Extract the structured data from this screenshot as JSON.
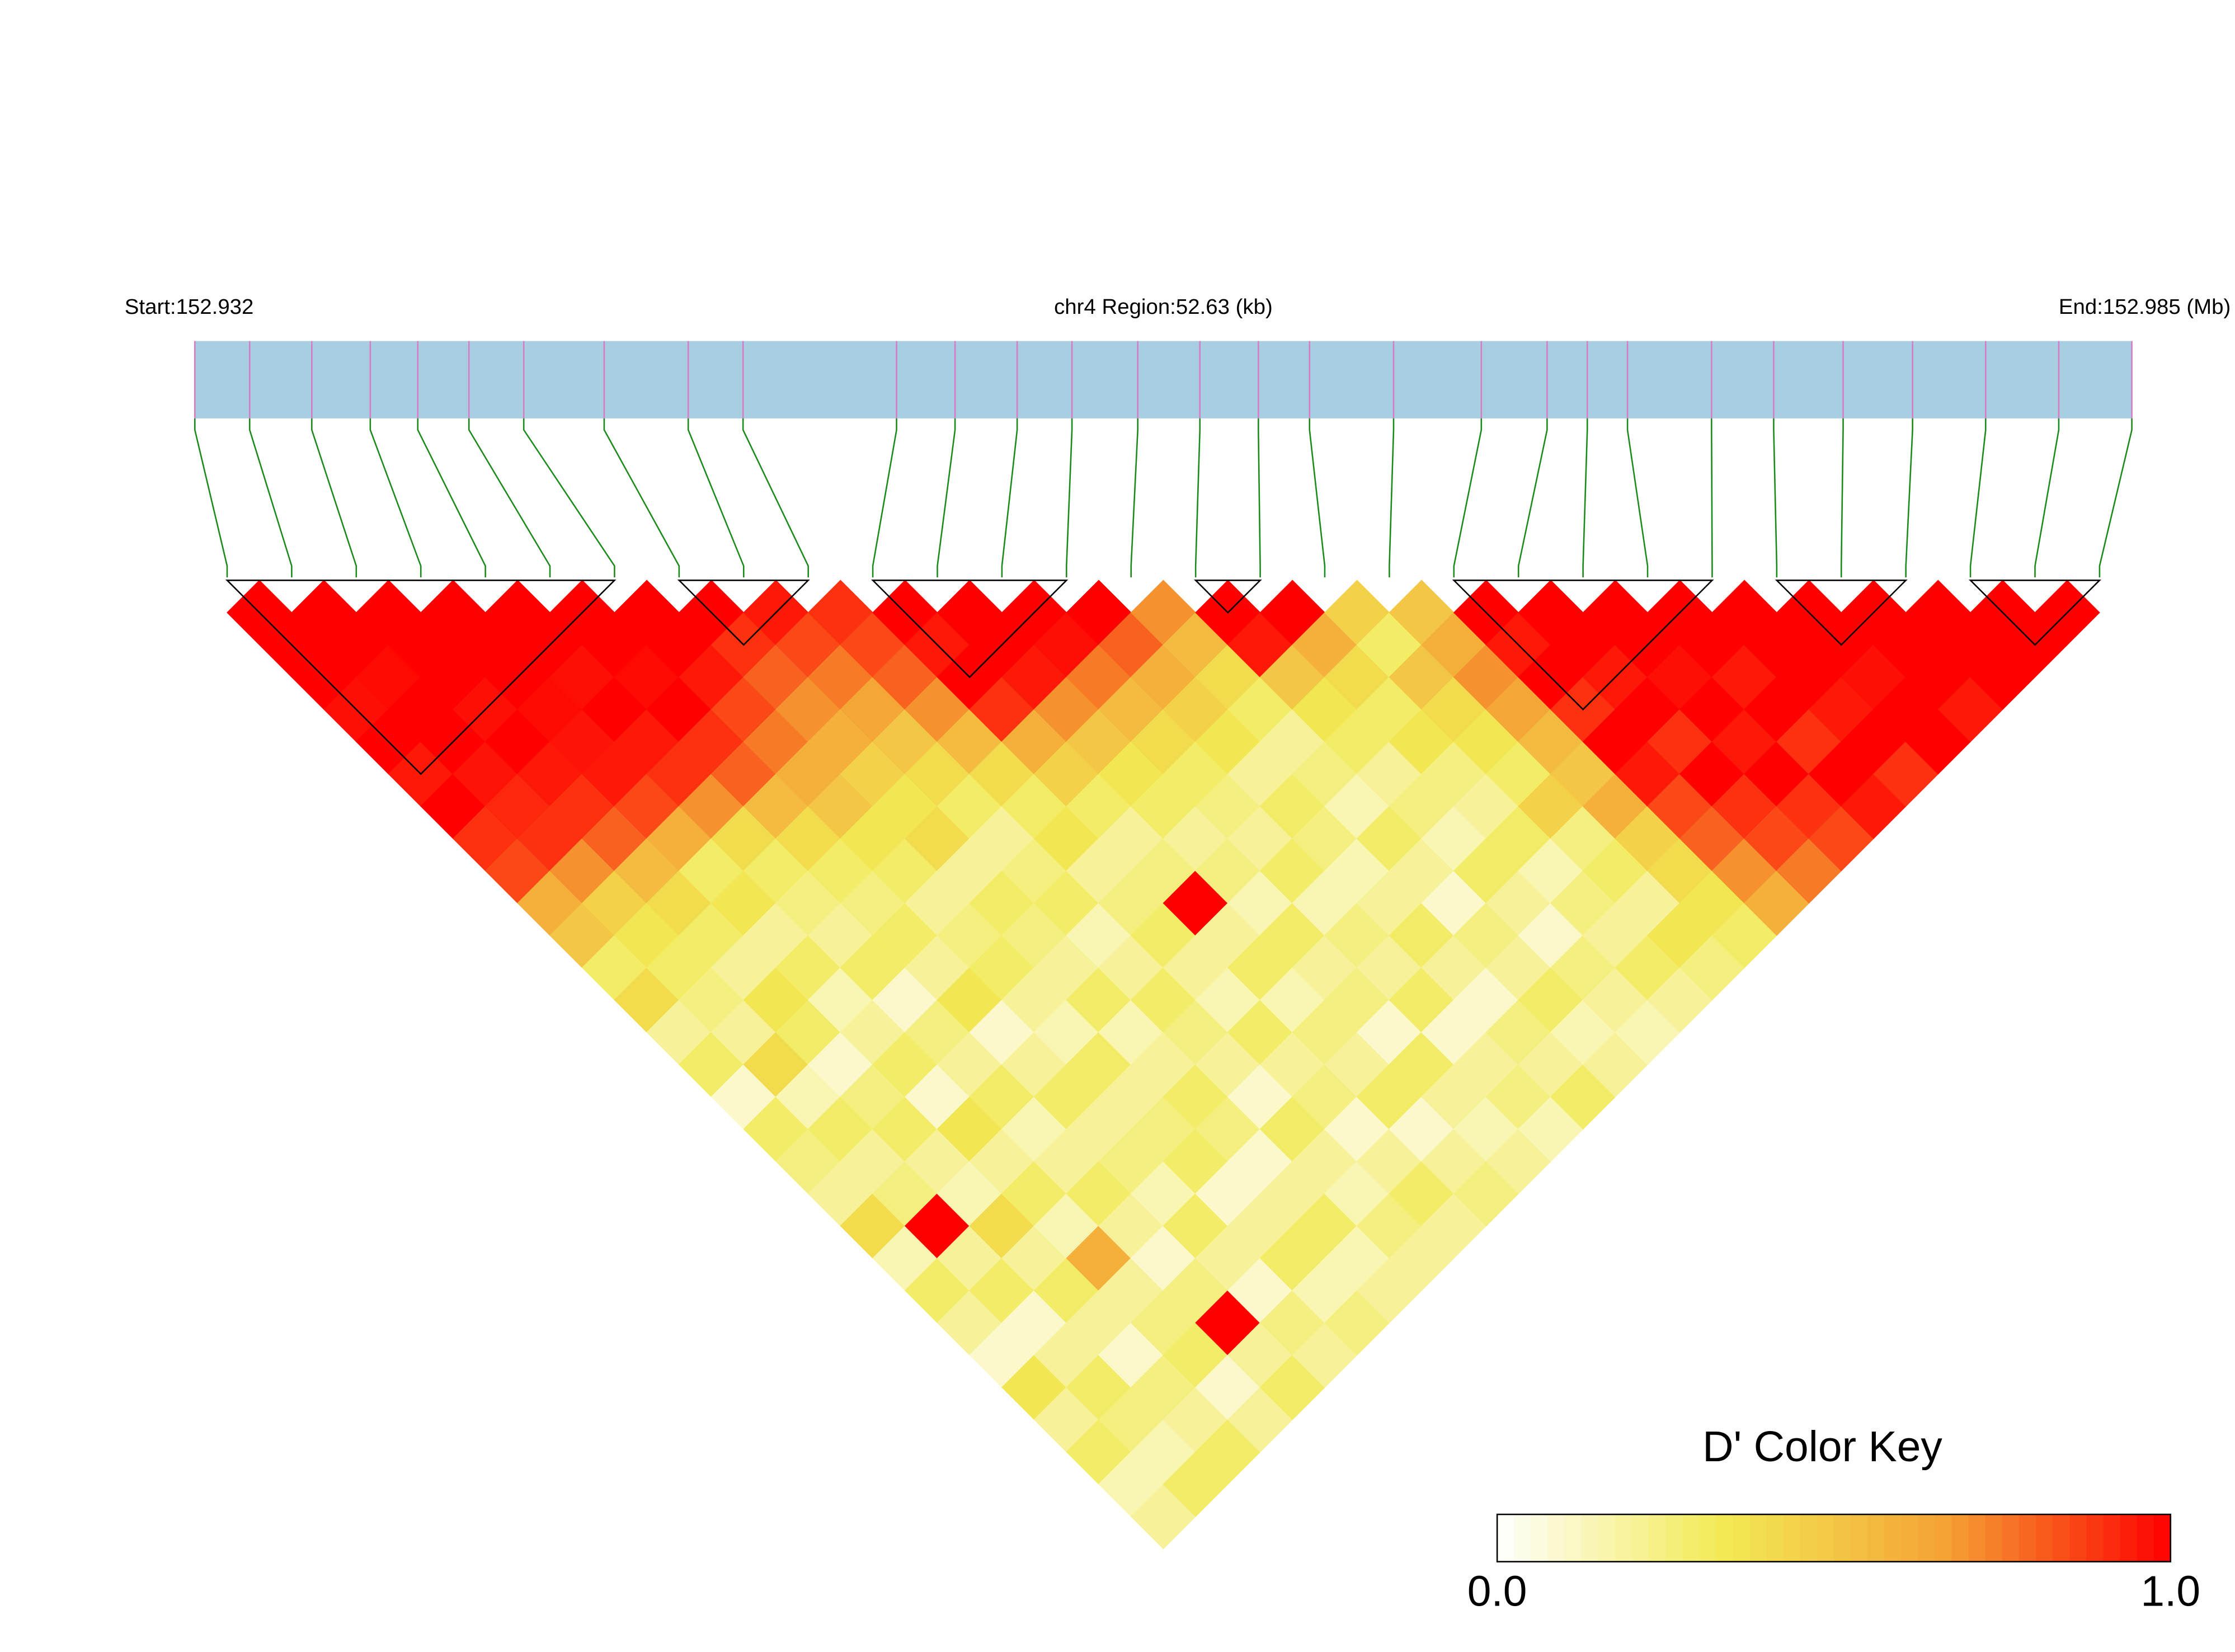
{
  "chart_data": {
    "type": "ld-heatmap",
    "start_label": "Start:152.932",
    "region_label": "chr4 Region:52.63 (kb)",
    "end_label": "End:152.985 (Mb)",
    "xlim": [
      152.932,
      152.985
    ],
    "snp_positions": [
      152.932,
      152.9335,
      152.9352,
      152.9368,
      152.9381,
      152.9395,
      152.941,
      152.9432,
      152.9455,
      152.947,
      152.9512,
      152.9528,
      152.9545,
      152.956,
      152.9578,
      152.9595,
      152.9611,
      152.9625,
      152.9648,
      152.9672,
      152.969,
      152.9701,
      152.9712,
      152.9735,
      152.9752,
      152.9771,
      152.979,
      152.981,
      152.983,
      152.985
    ],
    "bar_color": "#a8cfe1",
    "snp_line_color": "#d97bc4",
    "connector_color": "#1a8a1a",
    "values": [
      [
        1,
        1,
        1,
        0.97,
        1,
        0.95,
        1,
        0.9,
        0.85,
        0.6,
        0.5,
        0.3,
        0.4,
        0.2,
        0.3,
        0.1,
        0.3,
        0.25,
        0.2,
        0.4,
        0.15,
        0.3,
        0.2,
        0.1,
        0.35,
        0.2,
        0.3,
        0.15,
        0.2
      ],
      [
        1,
        1,
        0.98,
        1,
        1,
        0.96,
        0.92,
        0.9,
        0.7,
        0.45,
        0.35,
        0.3,
        0.25,
        0.2,
        0.4,
        0.15,
        0.3,
        0.2,
        0.25,
        1,
        0.2,
        0.3,
        0.1,
        0.2,
        0.3,
        0.25,
        0.15,
        0.3
      ],
      [
        1,
        1,
        1,
        0.97,
        1,
        0.95,
        0.9,
        0.8,
        0.55,
        0.4,
        0.3,
        0.2,
        0.35,
        0.3,
        0.1,
        0.25,
        0.3,
        0.2,
        0.15,
        0.4,
        0.2,
        0.3,
        0.2,
        0.1,
        0.25,
        0.2,
        0.3
      ],
      [
        1,
        1,
        1,
        0.98,
        0.96,
        0.95,
        0.85,
        0.6,
        0.3,
        0.35,
        0.2,
        0.3,
        0.15,
        0.2,
        0.3,
        0.1,
        0.35,
        0.2,
        0.3,
        0.15,
        0.6,
        0.2,
        0.25,
        0.3,
        0.1,
        0.2
      ],
      [
        1,
        1,
        0.97,
        1,
        0.95,
        0.9,
        0.7,
        0.4,
        0.3,
        0.25,
        0.2,
        0.3,
        0.1,
        0.25,
        0.2,
        0.3,
        0.15,
        0.2,
        0.3,
        0.2,
        0.1,
        0.25,
        1,
        0.2,
        0.3
      ],
      [
        1,
        1,
        0.98,
        1,
        0.9,
        0.8,
        0.55,
        0.4,
        0.3,
        0.25,
        0.3,
        0.2,
        0.35,
        0.1,
        0.2,
        0.3,
        0.2,
        0.25,
        0.15,
        0.3,
        0.2,
        0.1,
        0.25,
        0.2
      ],
      [
        1,
        1,
        0.95,
        0.85,
        0.75,
        0.6,
        0.5,
        0.35,
        0.3,
        0.2,
        0.25,
        0.3,
        0.2,
        0.15,
        0.3,
        0.2,
        0.25,
        0.3,
        0.1,
        0.2,
        0.3,
        0.15,
        0.25
      ],
      [
        1,
        0.9,
        0.8,
        0.7,
        0.6,
        0.45,
        0.35,
        0.4,
        0.2,
        0.3,
        0.25,
        0.2,
        0.3,
        0.15,
        0.2,
        0.3,
        0.25,
        0.1,
        0.2,
        0.3,
        0.15,
        0.2
      ],
      [
        0.95,
        0.85,
        0.75,
        0.65,
        0.5,
        0.4,
        0.3,
        0.2,
        0.25,
        0.3,
        0.15,
        0.2,
        0.3,
        0.25,
        0.2,
        0.1,
        0.3,
        0.2,
        0.15,
        0.25,
        0.2
      ],
      [
        0.9,
        0.85,
        0.8,
        0.7,
        0.55,
        0.4,
        0.3,
        0.35,
        0.2,
        0.25,
        0.3,
        0.2,
        0.15,
        0.3,
        0.2,
        0.25,
        0.1,
        0.2,
        0.3,
        0.2
      ],
      [
        1,
        0.95,
        1,
        0.9,
        0.6,
        0.45,
        0.3,
        0.2,
        0.25,
        1,
        0.2,
        0.3,
        0.15,
        0.25,
        0.2,
        0.3,
        0.1,
        0.2,
        0.25
      ],
      [
        1,
        1,
        0.95,
        0.7,
        0.5,
        0.35,
        0.3,
        0.2,
        0.25,
        0.15,
        0.3,
        0.2,
        0.25,
        0.1,
        0.3,
        0.2,
        0.15,
        0.2
      ],
      [
        1,
        0.97,
        0.75,
        0.55,
        0.4,
        0.3,
        0.25,
        0.2,
        0.3,
        0.15,
        0.25,
        0.2,
        0.3,
        0.1,
        0.2,
        0.25,
        0.15
      ],
      [
        1,
        0.8,
        0.6,
        0.45,
        0.35,
        0.2,
        0.3,
        0.25,
        0.15,
        0.2,
        0.3,
        0.2,
        0.1,
        0.25,
        0.2,
        0.3
      ],
      [
        0.7,
        0.55,
        0.4,
        0.3,
        0.2,
        0.25,
        0.15,
        0.3,
        0.2,
        0.1,
        0.25,
        0.2,
        0.3,
        0.15,
        0.2
      ],
      [
        1,
        0.95,
        0.5,
        0.35,
        0.3,
        0.2,
        0.25,
        0.15,
        0.3,
        0.2,
        0.1,
        0.25,
        0.2,
        0.15
      ],
      [
        1,
        0.6,
        0.4,
        0.3,
        0.35,
        0.25,
        0.2,
        0.3,
        0.15,
        0.25,
        0.2,
        0.3,
        0.2
      ],
      [
        0.45,
        0.3,
        0.5,
        0.4,
        0.35,
        0.3,
        0.45,
        0.25,
        0.3,
        0.2,
        0.35,
        0.25
      ],
      [
        0.5,
        0.6,
        0.7,
        0.65,
        0.55,
        0.5,
        0.6,
        0.45,
        0.4,
        0.35,
        0.3
      ],
      [
        1,
        0.95,
        1,
        0.9,
        1,
        0.95,
        0.85,
        0.8,
        0.7,
        0.6
      ],
      [
        1,
        1,
        0.95,
        1,
        0.9,
        1,
        0.9,
        0.85,
        0.75
      ],
      [
        1,
        1,
        0.97,
        1,
        0.95,
        1,
        0.9,
        0.85
      ],
      [
        1,
        1,
        0.95,
        1,
        0.9,
        1,
        0.95
      ],
      [
        1,
        1,
        1,
        0.95,
        1,
        0.9
      ],
      [
        1,
        1,
        0.97,
        1,
        1
      ],
      [
        1,
        1,
        1,
        0.95
      ],
      [
        1,
        1,
        1
      ],
      [
        1,
        1
      ],
      [
        1
      ]
    ],
    "blocks": [
      [
        0,
        6
      ],
      [
        7,
        9
      ],
      [
        10,
        13
      ],
      [
        15,
        16
      ],
      [
        19,
        23
      ],
      [
        24,
        26
      ],
      [
        27,
        29
      ]
    ],
    "colors": [
      "#ffffff",
      "#f2ea55",
      "#f4a234",
      "#ff0000"
    ],
    "colorbar_title": "D' Color Key",
    "colorbar_lim": [
      0,
      1
    ],
    "colorbar_ticks": [
      {
        "value": 0,
        "label": "0.0"
      },
      {
        "value": 1,
        "label": "1.0"
      }
    ]
  }
}
